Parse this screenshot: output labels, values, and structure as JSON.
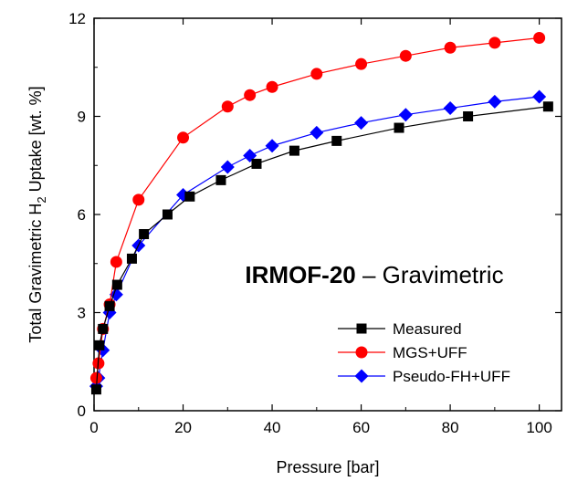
{
  "chart_data": {
    "type": "line",
    "title": "",
    "xlabel": "Pressure [bar]",
    "ylabel_parts": [
      "Total Gravimetric H",
      "2",
      " Uptake [wt. %]"
    ],
    "xlim": [
      0,
      105
    ],
    "ylim": [
      0,
      12
    ],
    "xticks": [
      0,
      20,
      40,
      60,
      80,
      100
    ],
    "yticks": [
      0,
      3,
      6,
      9,
      12
    ],
    "grid": false,
    "legend_position": "bottom-right",
    "annotation": {
      "bold": "IRMOF-20",
      "normal": " – Gravimetric"
    },
    "series": [
      {
        "name": "Measured",
        "color": "#000000",
        "marker": "square",
        "x": [
          0.5,
          1.2,
          2.0,
          3.5,
          5.2,
          8.5,
          11.2,
          16.5,
          21.5,
          28.5,
          36.5,
          45.0,
          54.5,
          68.5,
          84.0,
          102.0
        ],
        "y": [
          0.65,
          2.0,
          2.5,
          3.2,
          3.85,
          4.65,
          5.4,
          6.0,
          6.55,
          7.05,
          7.55,
          7.95,
          8.25,
          8.65,
          9.0,
          9.3
        ]
      },
      {
        "name": "MGS+UFF",
        "color": "#ff0000",
        "marker": "circle",
        "x": [
          0.5,
          1.0,
          2.0,
          3.5,
          5.0,
          10.0,
          20.0,
          30.0,
          35.0,
          40.0,
          50.0,
          60.0,
          70.0,
          80.0,
          90.0,
          100.0
        ],
        "y": [
          1.0,
          1.45,
          2.5,
          3.25,
          4.55,
          6.45,
          8.35,
          9.3,
          9.65,
          9.9,
          10.3,
          10.6,
          10.85,
          11.1,
          11.25,
          11.4
        ]
      },
      {
        "name": "Pseudo-FH+UFF",
        "color": "#0000ff",
        "marker": "diamond",
        "x": [
          0.5,
          1.0,
          2.0,
          3.5,
          5.0,
          10.0,
          20.0,
          30.0,
          35.0,
          40.0,
          50.0,
          60.0,
          70.0,
          80.0,
          90.0,
          100.0
        ],
        "y": [
          0.75,
          1.0,
          1.85,
          3.0,
          3.55,
          5.05,
          6.6,
          7.45,
          7.8,
          8.1,
          8.5,
          8.8,
          9.05,
          9.25,
          9.45,
          9.6
        ]
      }
    ]
  }
}
